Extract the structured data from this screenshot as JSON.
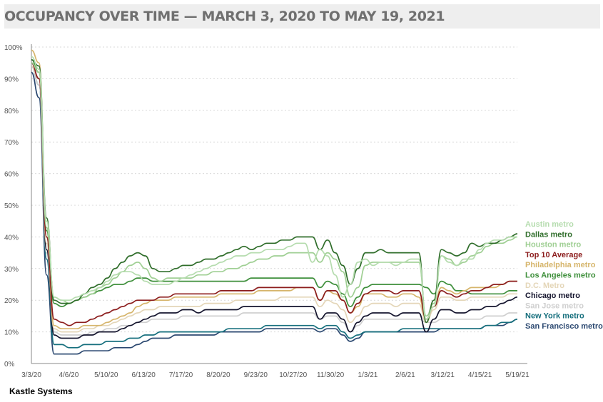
{
  "title": "OCCUPANCY OVER TIME — MARCH 3, 2020 TO MAY 19, 2021",
  "source": "Kastle Systems",
  "chart_data": {
    "type": "line",
    "title": "OCCUPANCY OVER TIME — MARCH 3, 2020 TO MAY 19, 2021",
    "xlabel": "",
    "ylabel": "",
    "ylim": [
      0,
      100
    ],
    "y_ticks": [
      "0%",
      "10%",
      "20%",
      "30%",
      "40%",
      "50%",
      "60%",
      "70%",
      "80%",
      "90%",
      "100%"
    ],
    "x_ticks": [
      "3/3/20",
      "4/6/20",
      "5/10/20",
      "6/13/20",
      "7/17/20",
      "8/20/20",
      "9/23/20",
      "10/27/20",
      "11/30/20",
      "1/3/21",
      "2/6/21",
      "3/12/21",
      "4/15/21",
      "5/19/21"
    ],
    "grid": true,
    "legend_position": "right",
    "x": [
      0,
      1,
      2,
      3,
      4,
      5,
      6,
      7,
      8,
      9,
      10,
      11,
      12,
      13,
      14,
      15,
      16,
      17,
      18,
      19,
      20,
      21,
      22,
      23,
      24,
      25,
      26,
      27,
      28,
      29,
      30,
      31,
      32,
      33,
      34,
      35,
      36,
      37,
      38,
      39,
      40,
      41,
      42,
      43,
      44,
      45,
      46,
      47,
      48,
      49,
      50,
      51,
      52,
      53,
      54,
      55,
      56,
      57,
      58,
      59,
      60,
      61,
      62,
      63,
      64
    ],
    "series": [
      {
        "name": "Austin metro",
        "color": "#b5dcae",
        "values": [
          97,
          93,
          45,
          21,
          20,
          20,
          21,
          22,
          23,
          24,
          26,
          28,
          29,
          29,
          28,
          26,
          25,
          25,
          25,
          26,
          27,
          28,
          29,
          30,
          31,
          32,
          33,
          34,
          34,
          35,
          35,
          36,
          36,
          36,
          37,
          38,
          38,
          32,
          36,
          34,
          28,
          21,
          25,
          32,
          33,
          31,
          32,
          32,
          31,
          32,
          33,
          33,
          14,
          18,
          34,
          32,
          31,
          33,
          33,
          36,
          38,
          39,
          39,
          40,
          40
        ]
      },
      {
        "name": "Dallas metro",
        "color": "#2f6d2a",
        "values": [
          96,
          94,
          46,
          20,
          19,
          19,
          20,
          22,
          24,
          25,
          27,
          30,
          32,
          34,
          35,
          34,
          30,
          29,
          29,
          30,
          31,
          31,
          32,
          33,
          33,
          34,
          35,
          36,
          37,
          36,
          37,
          38,
          38,
          39,
          39,
          40,
          40,
          40,
          36,
          39,
          35,
          31,
          25,
          30,
          35,
          35,
          36,
          35,
          35,
          35,
          35,
          35,
          13,
          20,
          36,
          35,
          34,
          35,
          38,
          37,
          38,
          38,
          39,
          40,
          41
        ]
      },
      {
        "name": "Houston metro",
        "color": "#9fcf93",
        "values": [
          95,
          92,
          43,
          21,
          20,
          19,
          20,
          21,
          22,
          24,
          25,
          27,
          29,
          31,
          32,
          30,
          27,
          26,
          27,
          27,
          27,
          27,
          28,
          28,
          29,
          29,
          30,
          30,
          31,
          32,
          33,
          33,
          34,
          34,
          35,
          35,
          35,
          35,
          32,
          35,
          33,
          29,
          21,
          24,
          31,
          32,
          32,
          32,
          32,
          32,
          32,
          32,
          15,
          19,
          34,
          33,
          31,
          32,
          34,
          35,
          37,
          38,
          38,
          39,
          40
        ]
      },
      {
        "name": "Top 10 Average",
        "color": "#8c1d1d",
        "values": [
          95,
          90,
          40,
          14,
          13,
          12,
          13,
          13,
          14,
          15,
          16,
          17,
          18,
          19,
          20,
          20,
          20,
          21,
          21,
          22,
          22,
          22,
          22,
          22,
          22,
          23,
          23,
          23,
          23,
          23,
          24,
          24,
          24,
          24,
          24,
          24,
          24,
          24,
          20,
          23,
          23,
          20,
          16,
          19,
          22,
          23,
          23,
          23,
          22,
          23,
          23,
          23,
          14,
          18,
          23,
          22,
          21,
          22,
          23,
          23,
          24,
          25,
          25,
          26,
          26
        ]
      },
      {
        "name": "Philadelphia metro",
        "color": "#d6b56b",
        "values": [
          99,
          95,
          40,
          12,
          11,
          11,
          11,
          12,
          12,
          12,
          13,
          14,
          15,
          16,
          18,
          19,
          20,
          20,
          20,
          21,
          21,
          21,
          21,
          21,
          21,
          22,
          22,
          22,
          22,
          22,
          23,
          23,
          23,
          23,
          23,
          24,
          24,
          24,
          20,
          23,
          22,
          20,
          16,
          18,
          22,
          22,
          22,
          21,
          21,
          22,
          22,
          21,
          14,
          18,
          24,
          23,
          22,
          23,
          24,
          24,
          24,
          24,
          25,
          26,
          26
        ]
      },
      {
        "name": "Los Angeles metro",
        "color": "#3e8f3b",
        "values": [
          96,
          92,
          42,
          19,
          18,
          19,
          20,
          21,
          22,
          23,
          24,
          25,
          25,
          26,
          27,
          27,
          26,
          26,
          26,
          26,
          26,
          26,
          26,
          26,
          26,
          26,
          26,
          26,
          26,
          27,
          27,
          27,
          27,
          27,
          27,
          27,
          27,
          27,
          24,
          26,
          25,
          22,
          18,
          21,
          24,
          25,
          25,
          25,
          25,
          25,
          25,
          25,
          24,
          22,
          26,
          25,
          23,
          23,
          22,
          22,
          22,
          22,
          22,
          23,
          23
        ]
      },
      {
        "name": "D.C. Metro",
        "color": "#e4d6b8",
        "values": [
          94,
          90,
          38,
          11,
          10,
          10,
          10,
          11,
          11,
          12,
          12,
          13,
          14,
          15,
          16,
          17,
          17,
          18,
          18,
          18,
          18,
          18,
          18,
          19,
          19,
          19,
          19,
          20,
          20,
          20,
          20,
          20,
          20,
          21,
          21,
          21,
          21,
          21,
          18,
          20,
          19,
          17,
          13,
          15,
          18,
          19,
          19,
          19,
          18,
          19,
          19,
          19,
          13,
          17,
          21,
          21,
          20,
          20,
          21,
          21,
          21,
          21,
          21,
          22,
          22
        ]
      },
      {
        "name": "Chicago metro",
        "color": "#15152e",
        "values": [
          95,
          90,
          36,
          9,
          8,
          8,
          8,
          9,
          9,
          10,
          10,
          10,
          11,
          12,
          13,
          14,
          15,
          16,
          16,
          16,
          17,
          17,
          16,
          17,
          17,
          17,
          17,
          17,
          18,
          18,
          18,
          18,
          18,
          18,
          18,
          18,
          18,
          18,
          14,
          16,
          16,
          14,
          10,
          13,
          15,
          16,
          16,
          16,
          15,
          16,
          16,
          16,
          10,
          14,
          17,
          17,
          16,
          16,
          17,
          17,
          18,
          18,
          19,
          20,
          21
        ]
      },
      {
        "name": "San Jose metro",
        "color": "#cfcfcf",
        "values": [
          94,
          88,
          35,
          10,
          9,
          9,
          9,
          9,
          10,
          10,
          11,
          11,
          12,
          12,
          13,
          13,
          14,
          14,
          14,
          14,
          15,
          15,
          15,
          15,
          15,
          15,
          15,
          15,
          16,
          16,
          16,
          16,
          16,
          16,
          16,
          16,
          16,
          16,
          14,
          15,
          15,
          13,
          10,
          12,
          14,
          14,
          14,
          14,
          14,
          14,
          14,
          14,
          13,
          13,
          14,
          14,
          14,
          14,
          14,
          14,
          15,
          15,
          15,
          16,
          16
        ]
      },
      {
        "name": "New York metro",
        "color": "#166f7d",
        "values": [
          94,
          88,
          33,
          6,
          6,
          5,
          5,
          6,
          6,
          6,
          7,
          7,
          7,
          8,
          8,
          9,
          9,
          10,
          10,
          10,
          10,
          10,
          10,
          10,
          10,
          10,
          11,
          11,
          11,
          11,
          11,
          12,
          12,
          12,
          12,
          12,
          12,
          12,
          11,
          12,
          12,
          10,
          8,
          9,
          10,
          10,
          10,
          10,
          10,
          11,
          11,
          11,
          11,
          11,
          11,
          11,
          11,
          11,
          11,
          11,
          12,
          12,
          13,
          13,
          14
        ]
      },
      {
        "name": "San Francisco metro",
        "color": "#2b4870",
        "values": [
          92,
          84,
          28,
          3,
          3,
          3,
          3,
          4,
          4,
          4,
          4,
          5,
          5,
          5,
          6,
          7,
          8,
          8,
          8,
          9,
          9,
          9,
          9,
          9,
          9,
          10,
          10,
          10,
          10,
          10,
          10,
          11,
          11,
          11,
          11,
          11,
          11,
          11,
          10,
          11,
          11,
          9,
          7,
          8,
          10,
          10,
          10,
          10,
          10,
          10,
          10,
          10,
          10,
          10,
          11,
          11,
          11,
          11,
          11,
          11,
          12,
          12,
          12,
          13,
          14
        ]
      }
    ]
  }
}
